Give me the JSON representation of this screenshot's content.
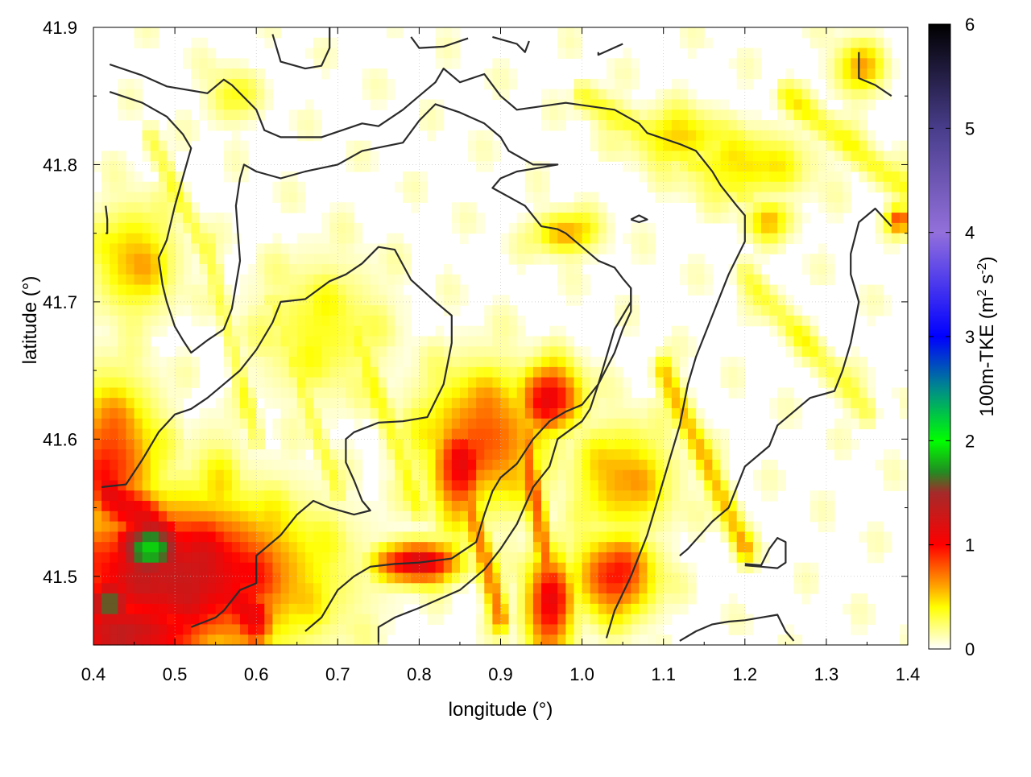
{
  "chart_data": {
    "type": "heatmap",
    "xlabel": "longitude (°)",
    "ylabel": "latitude (°)",
    "colorbar_label_main": "100m-TKE (m",
    "colorbar_label_sup1": "2",
    "colorbar_label_mid": " s",
    "colorbar_label_sup2": "-2",
    "colorbar_label_end": ")",
    "xlim": [
      0.4,
      1.4
    ],
    "ylim": [
      41.45,
      41.9
    ],
    "x_ticks": [
      "0.4",
      "0.5",
      "0.6",
      "0.7",
      "0.8",
      "0.9",
      "1.0",
      "1.1",
      "1.2",
      "1.3",
      "1.4"
    ],
    "y_ticks": [
      "41.5",
      "41.6",
      "41.7",
      "41.8",
      "41.9"
    ],
    "colorbar_ticks": [
      "0",
      "1",
      "2",
      "3",
      "4",
      "5",
      "6"
    ],
    "colorbar_range": [
      0,
      6
    ],
    "grid": true,
    "colorscale": [
      [
        0.0,
        "#ffffff"
      ],
      [
        0.25,
        "#ffff66"
      ],
      [
        0.4,
        "#ffff00"
      ],
      [
        0.6,
        "#ffa500"
      ],
      [
        1.0,
        "#ff0000"
      ],
      [
        1.5,
        "#a52a2a"
      ],
      [
        1.7,
        "#228b22"
      ],
      [
        2.0,
        "#00ff00"
      ],
      [
        2.5,
        "#008b8b"
      ],
      [
        3.0,
        "#0000ff"
      ],
      [
        4.0,
        "#9370db"
      ],
      [
        5.0,
        "#483d8b"
      ],
      [
        6.0,
        "#000000"
      ]
    ],
    "hotspots": [
      {
        "lon": 0.47,
        "lat": 41.52,
        "tke": 1.9,
        "rlon": 0.05,
        "rlat": 0.025
      },
      {
        "lon": 0.42,
        "lat": 41.48,
        "tke": 1.7,
        "rlon": 0.03,
        "rlat": 0.02
      },
      {
        "lon": 0.5,
        "lat": 41.5,
        "tke": 1.3,
        "rlon": 0.16,
        "rlat": 0.055
      },
      {
        "lon": 0.44,
        "lat": 41.46,
        "tke": 1.3,
        "rlon": 0.12,
        "rlat": 0.03
      },
      {
        "lon": 0.45,
        "lat": 41.73,
        "tke": 0.55,
        "rlon": 0.05,
        "rlat": 0.04
      },
      {
        "lon": 0.42,
        "lat": 41.58,
        "tke": 0.9,
        "rlon": 0.06,
        "rlat": 0.06
      },
      {
        "lon": 0.8,
        "lat": 41.51,
        "tke": 1.25,
        "rlon": 0.05,
        "rlat": 0.015
      },
      {
        "lon": 0.85,
        "lat": 41.58,
        "tke": 1.05,
        "rlon": 0.035,
        "rlat": 0.04
      },
      {
        "lon": 0.96,
        "lat": 41.63,
        "tke": 1.1,
        "rlon": 0.04,
        "rlat": 0.025
      },
      {
        "lon": 0.88,
        "lat": 41.6,
        "tke": 0.8,
        "rlon": 0.08,
        "rlat": 0.05
      },
      {
        "lon": 0.96,
        "lat": 41.48,
        "tke": 1.05,
        "rlon": 0.03,
        "rlat": 0.04
      },
      {
        "lon": 1.04,
        "lat": 41.5,
        "tke": 0.95,
        "rlon": 0.05,
        "rlat": 0.03
      },
      {
        "lon": 1.05,
        "lat": 41.57,
        "tke": 0.6,
        "rlon": 0.06,
        "rlat": 0.04
      },
      {
        "lon": 0.98,
        "lat": 41.75,
        "tke": 0.6,
        "rlon": 0.04,
        "rlat": 0.015
      },
      {
        "lon": 1.12,
        "lat": 41.82,
        "tke": 0.5,
        "rlon": 0.06,
        "rlat": 0.02
      },
      {
        "lon": 1.2,
        "lat": 41.8,
        "tke": 0.45,
        "rlon": 0.08,
        "rlat": 0.025
      },
      {
        "lon": 1.34,
        "lat": 41.87,
        "tke": 0.55,
        "rlon": 0.03,
        "rlat": 0.02
      },
      {
        "lon": 1.39,
        "lat": 41.76,
        "tke": 0.8,
        "rlon": 0.015,
        "rlat": 0.01
      },
      {
        "lon": 1.23,
        "lat": 41.76,
        "tke": 0.5,
        "rlon": 0.03,
        "rlat": 0.015
      },
      {
        "lon": 0.57,
        "lat": 41.85,
        "tke": 0.35,
        "rlon": 0.03,
        "rlat": 0.02
      },
      {
        "lon": 0.55,
        "lat": 41.55,
        "tke": 0.45,
        "rlon": 0.04,
        "rlat": 0.05
      },
      {
        "lon": 0.68,
        "lat": 41.68,
        "tke": 0.35,
        "rlon": 0.08,
        "rlat": 0.05
      }
    ],
    "streaks": [
      {
        "lon1": 0.42,
        "lat1": 41.56,
        "lon2": 0.6,
        "lat2": 41.47,
        "tke": 1.1,
        "w": 0.025
      },
      {
        "lon1": 0.84,
        "lat1": 41.6,
        "lon2": 0.9,
        "lat2": 41.47,
        "tke": 0.7,
        "w": 0.012
      },
      {
        "lon1": 0.93,
        "lat1": 41.6,
        "lon2": 0.97,
        "lat2": 41.46,
        "tke": 0.75,
        "w": 0.012
      },
      {
        "lon1": 1.1,
        "lat1": 41.65,
        "lon2": 1.2,
        "lat2": 41.52,
        "tke": 0.55,
        "w": 0.012
      },
      {
        "lon1": 0.72,
        "lat1": 41.68,
        "lon2": 0.8,
        "lat2": 41.55,
        "tke": 0.35,
        "w": 0.012
      },
      {
        "lon1": 0.62,
        "lat1": 41.7,
        "lon2": 0.7,
        "lat2": 41.56,
        "tke": 0.3,
        "w": 0.01
      },
      {
        "lon1": 0.54,
        "lat1": 41.74,
        "lon2": 0.6,
        "lat2": 41.6,
        "tke": 0.28,
        "w": 0.01
      },
      {
        "lon1": 1.2,
        "lat1": 41.72,
        "lon2": 1.35,
        "lat2": 41.62,
        "tke": 0.3,
        "w": 0.012
      },
      {
        "lon1": 1.0,
        "lat1": 41.85,
        "lon2": 1.2,
        "lat2": 41.78,
        "tke": 0.35,
        "w": 0.012
      },
      {
        "lon1": 1.25,
        "lat1": 41.85,
        "lon2": 1.4,
        "lat2": 41.78,
        "tke": 0.35,
        "w": 0.012
      },
      {
        "lon1": 0.47,
        "lat1": 41.82,
        "lon2": 0.55,
        "lat2": 41.72,
        "tke": 0.3,
        "w": 0.01
      }
    ],
    "contours": [
      [
        [
          0.42,
          41.873
        ],
        [
          0.46,
          41.865
        ],
        [
          0.49,
          41.857
        ],
        [
          0.54,
          41.852
        ],
        [
          0.56,
          41.862
        ],
        [
          0.57,
          41.858
        ],
        [
          0.6,
          41.84
        ],
        [
          0.61,
          41.825
        ],
        [
          0.63,
          41.82
        ],
        [
          0.68,
          41.82
        ],
        [
          0.73,
          41.83
        ],
        [
          0.75,
          41.828
        ],
        [
          0.78,
          41.84
        ],
        [
          0.79,
          41.845
        ],
        [
          0.8,
          41.85
        ],
        [
          0.82,
          41.86
        ],
        [
          0.83,
          41.87
        ],
        [
          0.85,
          41.86
        ],
        [
          0.88,
          41.866
        ],
        [
          0.9,
          41.85
        ],
        [
          0.92,
          41.84
        ],
        [
          0.98,
          41.845
        ],
        [
          1.04,
          41.84
        ],
        [
          1.07,
          41.83
        ],
        [
          1.08,
          41.823
        ],
        [
          1.12,
          41.815
        ],
        [
          1.14,
          41.81
        ],
        [
          1.16,
          41.795
        ],
        [
          1.17,
          41.785
        ],
        [
          1.19,
          41.77
        ],
        [
          1.2,
          41.763
        ],
        [
          1.2,
          41.744
        ],
        [
          1.18,
          41.72
        ],
        [
          1.16,
          41.69
        ],
        [
          1.14,
          41.66
        ],
        [
          1.13,
          41.64
        ],
        [
          1.12,
          41.61
        ],
        [
          1.1,
          41.57
        ],
        [
          1.08,
          41.53
        ],
        [
          1.06,
          41.5
        ],
        [
          1.04,
          41.475
        ],
        [
          1.03,
          41.455
        ]
      ],
      [
        [
          0.42,
          41.853
        ],
        [
          0.46,
          41.845
        ],
        [
          0.49,
          41.835
        ],
        [
          0.51,
          41.822
        ],
        [
          0.52,
          41.812
        ],
        [
          0.51,
          41.791
        ],
        [
          0.5,
          41.77
        ],
        [
          0.49,
          41.745
        ],
        [
          0.48,
          41.732
        ],
        [
          0.485,
          41.712
        ],
        [
          0.49,
          41.7
        ],
        [
          0.5,
          41.682
        ],
        [
          0.51,
          41.672
        ],
        [
          0.52,
          41.663
        ],
        [
          0.54,
          41.672
        ],
        [
          0.56,
          41.68
        ],
        [
          0.57,
          41.695
        ],
        [
          0.58,
          41.73
        ],
        [
          0.575,
          41.77
        ],
        [
          0.58,
          41.79
        ],
        [
          0.585,
          41.8
        ],
        [
          0.6,
          41.795
        ],
        [
          0.63,
          41.79
        ],
        [
          0.66,
          41.795
        ],
        [
          0.7,
          41.8
        ],
        [
          0.73,
          41.81
        ],
        [
          0.78,
          41.816
        ],
        [
          0.8,
          41.832
        ],
        [
          0.82,
          41.844
        ],
        [
          0.85,
          41.838
        ],
        [
          0.88,
          41.83
        ],
        [
          0.9,
          41.82
        ],
        [
          0.91,
          41.81
        ],
        [
          0.94,
          41.8
        ],
        [
          0.97,
          41.8
        ],
        [
          0.95,
          41.798
        ],
        [
          0.92,
          41.795
        ],
        [
          0.9,
          41.79
        ],
        [
          0.89,
          41.783
        ],
        [
          0.93,
          41.77
        ],
        [
          0.95,
          41.755
        ],
        [
          0.97,
          41.753
        ],
        [
          0.98,
          41.75
        ],
        [
          1.0,
          41.74
        ],
        [
          1.02,
          41.73
        ],
        [
          1.04,
          41.725
        ],
        [
          1.05,
          41.717
        ],
        [
          1.06,
          41.71
        ],
        [
          1.06,
          41.693
        ],
        [
          1.05,
          41.68
        ],
        [
          1.04,
          41.663
        ],
        [
          1.02,
          41.64
        ],
        [
          1.01,
          41.622
        ],
        [
          1.0,
          41.613
        ],
        [
          0.97,
          41.6
        ],
        [
          0.96,
          41.58
        ],
        [
          0.94,
          41.565
        ],
        [
          0.92,
          41.538
        ],
        [
          0.9,
          41.52
        ],
        [
          0.88,
          41.505
        ],
        [
          0.85,
          41.49
        ],
        [
          0.8,
          41.477
        ],
        [
          0.77,
          41.47
        ],
        [
          0.75,
          41.463
        ],
        [
          0.75,
          41.452
        ]
      ],
      [
        [
          0.41,
          41.565
        ],
        [
          0.44,
          41.567
        ],
        [
          0.46,
          41.585
        ],
        [
          0.48,
          41.605
        ],
        [
          0.5,
          41.618
        ],
        [
          0.52,
          41.622
        ],
        [
          0.54,
          41.63
        ],
        [
          0.56,
          41.64
        ],
        [
          0.58,
          41.65
        ],
        [
          0.6,
          41.665
        ],
        [
          0.62,
          41.685
        ],
        [
          0.63,
          41.7
        ],
        [
          0.66,
          41.702
        ],
        [
          0.69,
          41.715
        ],
        [
          0.71,
          41.72
        ],
        [
          0.73,
          41.728
        ],
        [
          0.75,
          41.74
        ],
        [
          0.77,
          41.738
        ],
        [
          0.79,
          41.716
        ],
        [
          0.82,
          41.7
        ],
        [
          0.84,
          41.69
        ],
        [
          0.84,
          41.67
        ],
        [
          0.83,
          41.64
        ],
        [
          0.81,
          41.616
        ],
        [
          0.78,
          41.613
        ],
        [
          0.75,
          41.612
        ],
        [
          0.72,
          41.605
        ],
        [
          0.71,
          41.6
        ],
        [
          0.71,
          41.583
        ],
        [
          0.72,
          41.57
        ],
        [
          0.73,
          41.555
        ],
        [
          0.74,
          41.548
        ],
        [
          0.72,
          41.545
        ],
        [
          0.69,
          41.55
        ],
        [
          0.67,
          41.555
        ],
        [
          0.65,
          41.545
        ],
        [
          0.63,
          41.53
        ],
        [
          0.6,
          41.515
        ],
        [
          0.6,
          41.495
        ],
        [
          0.58,
          41.49
        ],
        [
          0.56,
          41.475
        ],
        [
          0.55,
          41.47
        ],
        [
          0.52,
          41.463
        ]
      ],
      [
        [
          0.66,
          41.46
        ],
        [
          0.68,
          41.47
        ],
        [
          0.7,
          41.49
        ],
        [
          0.72,
          41.5
        ],
        [
          0.74,
          41.507
        ],
        [
          0.77,
          41.509
        ],
        [
          0.8,
          41.51
        ],
        [
          0.84,
          41.513
        ],
        [
          0.87,
          41.525
        ],
        [
          0.88,
          41.545
        ],
        [
          0.89,
          41.562
        ],
        [
          0.9,
          41.572
        ],
        [
          0.92,
          41.582
        ],
        [
          0.94,
          41.6
        ],
        [
          0.96,
          41.613
        ],
        [
          0.98,
          41.62
        ],
        [
          1.0,
          41.625
        ],
        [
          1.02,
          41.64
        ],
        [
          1.03,
          41.66
        ],
        [
          1.04,
          41.68
        ],
        [
          1.06,
          41.7
        ],
        [
          1.06,
          41.71
        ]
      ],
      [
        [
          1.12,
          41.453
        ],
        [
          1.14,
          41.46
        ],
        [
          1.16,
          41.465
        ],
        [
          1.18,
          41.467
        ],
        [
          1.2,
          41.468
        ],
        [
          1.22,
          41.47
        ],
        [
          1.24,
          41.472
        ],
        [
          1.25,
          41.46
        ],
        [
          1.26,
          41.453
        ]
      ],
      [
        [
          1.2,
          41.508
        ],
        [
          1.22,
          41.507
        ],
        [
          1.24,
          41.506
        ],
        [
          1.25,
          41.51
        ],
        [
          1.25,
          41.525
        ],
        [
          1.24,
          41.528
        ],
        [
          1.23,
          41.52
        ],
        [
          1.22,
          41.508
        ],
        [
          1.2,
          41.509
        ]
      ],
      [
        [
          0.62,
          41.895
        ],
        [
          0.63,
          41.875
        ],
        [
          0.66,
          41.87
        ],
        [
          0.68,
          41.872
        ],
        [
          0.69,
          41.885
        ],
        [
          0.69,
          41.9
        ]
      ],
      [
        [
          0.79,
          41.893
        ],
        [
          0.8,
          41.885
        ],
        [
          0.83,
          41.886
        ],
        [
          0.86,
          41.892
        ]
      ],
      [
        [
          0.89,
          41.893
        ],
        [
          0.92,
          41.888
        ],
        [
          0.93,
          41.882
        ],
        [
          0.935,
          41.89
        ]
      ],
      [
        [
          1.02,
          41.882
        ],
        [
          1.02,
          41.88
        ],
        [
          1.05,
          41.888
        ]
      ],
      [
        [
          1.34,
          41.882
        ],
        [
          1.34,
          41.863
        ],
        [
          1.36,
          41.858
        ],
        [
          1.38,
          41.85
        ]
      ],
      [
        [
          0.415,
          41.77
        ],
        [
          0.417,
          41.76
        ],
        [
          0.417,
          41.75
        ],
        [
          0.415,
          41.75
        ]
      ],
      [
        [
          1.06,
          41.76
        ],
        [
          1.07,
          41.763
        ],
        [
          1.08,
          41.76
        ],
        [
          1.07,
          41.758
        ],
        [
          1.06,
          41.76
        ]
      ],
      [
        [
          1.38,
          41.755
        ],
        [
          1.36,
          41.768
        ],
        [
          1.34,
          41.758
        ],
        [
          1.33,
          41.735
        ],
        [
          1.33,
          41.72
        ],
        [
          1.34,
          41.7
        ],
        [
          1.33,
          41.67
        ],
        [
          1.32,
          41.65
        ],
        [
          1.31,
          41.635
        ],
        [
          1.28,
          41.63
        ],
        [
          1.26,
          41.62
        ],
        [
          1.24,
          41.61
        ],
        [
          1.23,
          41.595
        ],
        [
          1.2,
          41.58
        ],
        [
          1.18,
          41.55
        ],
        [
          1.16,
          41.54
        ],
        [
          1.13,
          41.52
        ],
        [
          1.12,
          41.515
        ]
      ]
    ]
  }
}
